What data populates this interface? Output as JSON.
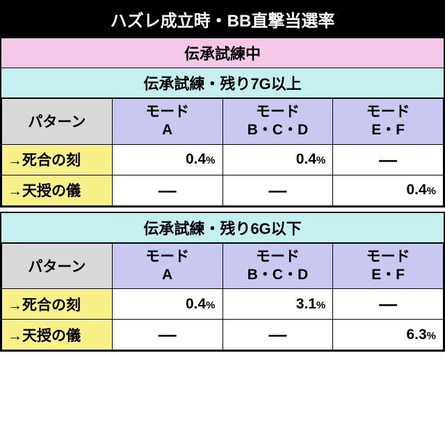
{
  "title": "ハズレ成立時・BB直撃当選率",
  "main_section": "伝承試練中",
  "colors": {
    "title_bg": "#000000",
    "title_fg": "#ffffff",
    "pink_bg": "#f5c8e8",
    "cyan_bg": "#c5f0f0",
    "gray_bg": "#d8d8d8",
    "purple_bg": "#c8c8f0",
    "yellow_bg": "#f8f088",
    "white_bg": "#ffffff",
    "border": "#000000"
  },
  "pattern_label": "パターン",
  "mode_headers": {
    "a": "モード<br>A",
    "bcd": "モード<br>B・C・D",
    "ef": "モード<br>E・F"
  },
  "percent_suffix": "%",
  "dash": "―",
  "sections": [
    {
      "subtitle": "伝承試練・残り7G以上",
      "rows": [
        {
          "label": "→死合の刻",
          "values": {
            "a": "0.4",
            "bcd": "0.4",
            "ef": null
          }
        },
        {
          "label": "→天授の儀",
          "values": {
            "a": null,
            "bcd": null,
            "ef": "0.4"
          }
        }
      ]
    },
    {
      "subtitle": "伝承試練・残り6G以下",
      "rows": [
        {
          "label": "→死合の刻",
          "values": {
            "a": "0.4",
            "bcd": "3.1",
            "ef": null
          }
        },
        {
          "label": "→天授の儀",
          "values": {
            "a": null,
            "bcd": null,
            "ef": "6.3"
          }
        }
      ]
    }
  ]
}
